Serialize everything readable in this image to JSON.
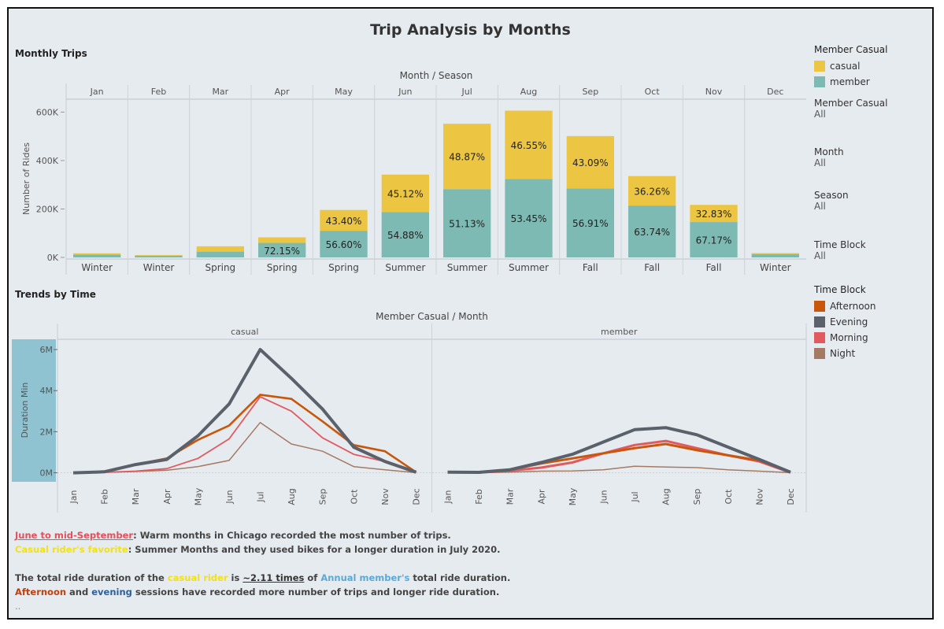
{
  "title": "Trip Analysis by Months",
  "colors": {
    "casual": "#ecc643",
    "member": "#7dbab4",
    "afternoon": "#c8570b",
    "evening": "#5a616b",
    "morning": "#e05a60",
    "night": "#a57a63",
    "axis_band": "#8fc3d2"
  },
  "chart_data": [
    {
      "type": "bar",
      "title": "Monthly Trips",
      "header": "Month / Season",
      "categories": [
        "Jan",
        "Feb",
        "Mar",
        "Apr",
        "May",
        "Jun",
        "Jul",
        "Aug",
        "Sep",
        "Oct",
        "Nov",
        "Dec"
      ],
      "seasons": [
        "Winter",
        "Winter",
        "Spring",
        "Spring",
        "Spring",
        "Summer",
        "Summer",
        "Summer",
        "Fall",
        "Fall",
        "Fall",
        "Winter"
      ],
      "ylabel": "Number of Rides",
      "ylim": [
        0,
        650000
      ],
      "yticks": [
        0,
        200000,
        400000,
        600000
      ],
      "ytick_labels": [
        "0K",
        "200K",
        "400K",
        "600K"
      ],
      "series": [
        {
          "name": "member",
          "values": [
            12000,
            7000,
            24000,
            60000,
            110000,
            187000,
            282000,
            324000,
            285000,
            214000,
            146000,
            14000
          ],
          "labels": [
            "",
            "",
            "",
            "72.15%",
            "56.60%",
            "54.88%",
            "51.13%",
            "53.45%",
            "56.91%",
            "63.74%",
            "67.17%",
            ""
          ]
        },
        {
          "name": "casual",
          "values": [
            5000,
            3000,
            22000,
            23000,
            86000,
            155000,
            270000,
            282000,
            216000,
            122000,
            71000,
            4000
          ],
          "labels": [
            "",
            "",
            "",
            "",
            "43.40%",
            "45.12%",
            "48.87%",
            "46.55%",
            "43.09%",
            "36.26%",
            "32.83%",
            ""
          ]
        }
      ]
    },
    {
      "type": "line",
      "title": "Trends by Time",
      "header": "Member Casual / Month",
      "panels": [
        "casual",
        "member"
      ],
      "x": [
        "Jan",
        "Feb",
        "Mar",
        "Apr",
        "May",
        "Jun",
        "Jul",
        "Aug",
        "Sep",
        "Oct",
        "Nov",
        "Dec"
      ],
      "ylabel": "Duration Min",
      "ylim": [
        -400000,
        6500000
      ],
      "yticks": [
        0,
        2000000,
        4000000,
        6000000
      ],
      "ytick_labels": [
        "0M",
        "2M",
        "4M",
        "6M"
      ],
      "series": [
        {
          "name": "Afternoon",
          "panel": "casual",
          "values": [
            0,
            50000,
            400000,
            700000,
            1600000,
            2300000,
            3800000,
            3600000,
            2500000,
            1350000,
            1050000,
            30000
          ]
        },
        {
          "name": "Evening",
          "panel": "casual",
          "values": [
            0,
            50000,
            400000,
            650000,
            1800000,
            3350000,
            6000000,
            4600000,
            3100000,
            1250000,
            550000,
            30000
          ]
        },
        {
          "name": "Morning",
          "panel": "casual",
          "values": [
            0,
            20000,
            80000,
            200000,
            700000,
            1650000,
            3700000,
            3000000,
            1700000,
            900000,
            550000,
            10000
          ]
        },
        {
          "name": "Night",
          "panel": "casual",
          "values": [
            0,
            20000,
            60000,
            120000,
            300000,
            600000,
            2450000,
            1400000,
            1050000,
            300000,
            150000,
            5000
          ]
        },
        {
          "name": "Afternoon",
          "panel": "member",
          "values": [
            30000,
            20000,
            150000,
            450000,
            700000,
            950000,
            1200000,
            1400000,
            1100000,
            850000,
            600000,
            30000
          ]
        },
        {
          "name": "Evening",
          "panel": "member",
          "values": [
            30000,
            20000,
            150000,
            500000,
            900000,
            1500000,
            2100000,
            2200000,
            1850000,
            1250000,
            650000,
            30000
          ]
        },
        {
          "name": "Morning",
          "panel": "member",
          "values": [
            20000,
            10000,
            100000,
            250000,
            500000,
            950000,
            1350000,
            1550000,
            1200000,
            850000,
            550000,
            10000
          ]
        },
        {
          "name": "Night",
          "panel": "member",
          "values": [
            5000,
            5000,
            30000,
            80000,
            90000,
            150000,
            320000,
            280000,
            250000,
            150000,
            80000,
            5000
          ]
        }
      ]
    }
  ],
  "legends": {
    "member_casual": {
      "title": "Member Casual",
      "items": [
        "casual",
        "member"
      ]
    },
    "filters": [
      {
        "title": "Member Casual",
        "value": "All"
      },
      {
        "title": "Month",
        "value": "All"
      },
      {
        "title": "Season",
        "value": "All"
      },
      {
        "title": "Time Block",
        "value": "All"
      }
    ],
    "time_block": {
      "title": "Time Block",
      "items": [
        "Afternoon",
        "Evening",
        "Morning",
        "Night"
      ]
    }
  },
  "notes": {
    "l1_highlight": "June to mid-September",
    "l1_rest": ": Warm months in Chicago recorded the most number of trips.",
    "l2_highlight": "Casual rider's favorite",
    "l2_rest": ": Summer Months and they used bikes for a longer duration in July 2020.",
    "l3_a": "The total ride duration of the ",
    "l3_b": "casual rider",
    "l3_c": " is ",
    "l3_d": "~2.11 times",
    "l3_e": " of ",
    "l3_f": "Annual member's",
    "l3_g": " total ride duration.",
    "l4_a": "Afternoon",
    "l4_b": " and ",
    "l4_c": "evening",
    "l4_d": " sessions have recorded more number of trips and longer ride duration.",
    "l5": ".."
  }
}
